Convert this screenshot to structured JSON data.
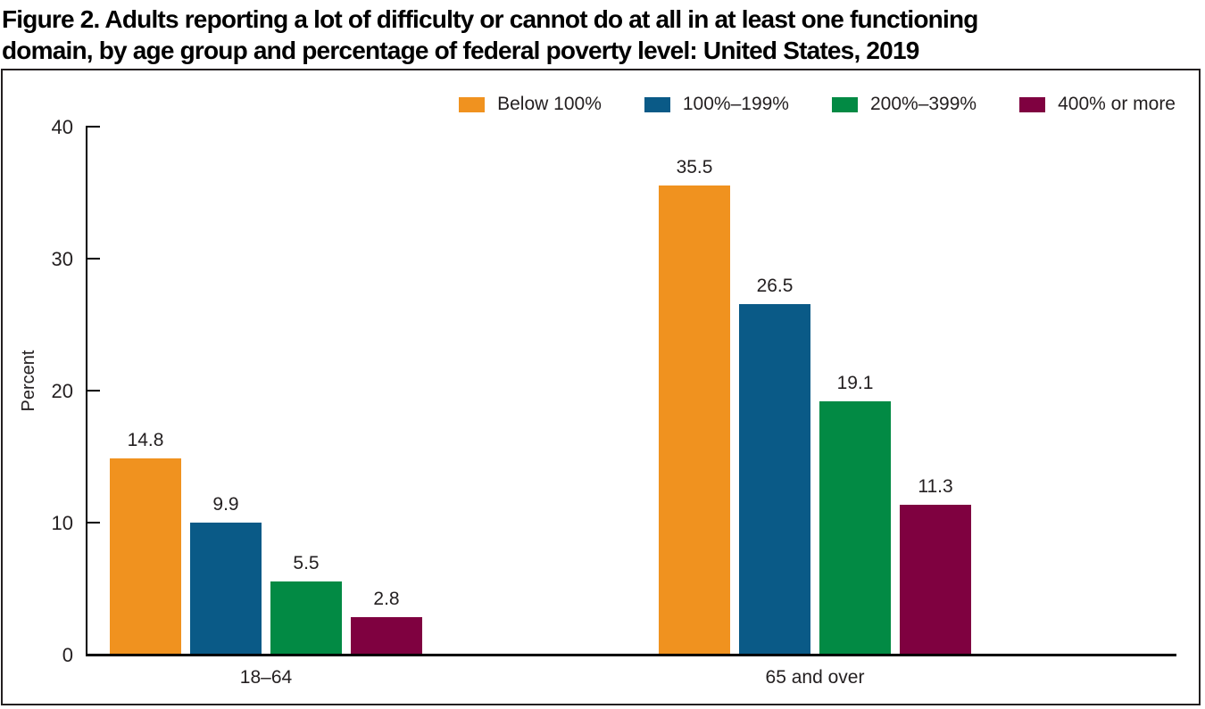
{
  "figure": {
    "title_line1": "Figure 2. Adults reporting a lot of difficulty or cannot do at all in at least one functioning",
    "title_line2": "domain, by age group and percentage of federal poverty level: United States, 2019"
  },
  "chart_data": {
    "type": "bar",
    "title": "Figure 2. Adults reporting a lot of difficulty or cannot do at all in at least one functioning domain, by age group and percentage of federal poverty level: United States, 2019",
    "categories": [
      "18–64",
      "65 and over"
    ],
    "series": [
      {
        "name": "Below 100%",
        "color": "#F0921F",
        "values": [
          14.8,
          35.5
        ]
      },
      {
        "name": "100%–199%",
        "color": "#0A5A87",
        "values": [
          9.9,
          26.5
        ]
      },
      {
        "name": "200%–399%",
        "color": "#028A44",
        "values": [
          5.5,
          19.1
        ]
      },
      {
        "name": "400% or more",
        "color": "#7F0140",
        "values": [
          2.8,
          11.3
        ]
      }
    ],
    "xlabel": "",
    "ylabel": "Percent",
    "yticks": [
      0,
      10,
      20,
      30,
      40
    ],
    "ylim": [
      0,
      40
    ],
    "grid": false,
    "legend_position": "top-right",
    "value_labels": true,
    "axis_color": "#000000"
  }
}
